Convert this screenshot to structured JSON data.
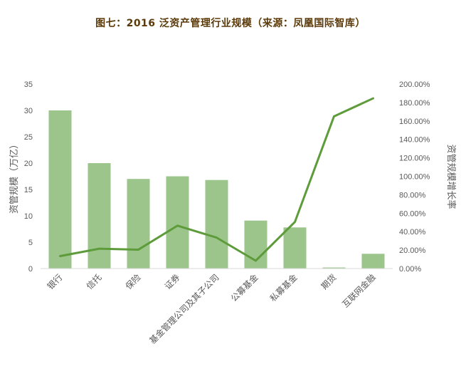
{
  "chart_data": {
    "type": "bar",
    "title": "图七：2016 泛资产管理行业规模（来源：凤凰国际智库）",
    "categories": [
      "银行",
      "信托",
      "保险",
      "证券",
      "基金管理公司及其子公司",
      "公募基金",
      "私募基金",
      "期货",
      "互联网金融"
    ],
    "series": [
      {
        "type": "bar",
        "axis": "left",
        "values": [
          30,
          20,
          17,
          17.5,
          16.8,
          9.1,
          7.8,
          0.2,
          2.8
        ]
      },
      {
        "type": "line",
        "axis": "right",
        "values": [
          13.5,
          21.5,
          20.5,
          46.5,
          33.5,
          8.5,
          50.5,
          165,
          184.5
        ]
      }
    ],
    "ylabel": "资管规模（万亿）",
    "y2label": "资管规模增长率",
    "ylim": [
      0,
      35
    ],
    "y2lim": [
      0,
      200
    ],
    "yticks": [
      "0",
      "5",
      "10",
      "15",
      "20",
      "25",
      "30",
      "35"
    ],
    "y2ticks": [
      "0.00%",
      "20.00%",
      "40.00%",
      "60.00%",
      "80.00%",
      "100.00%",
      "120.00%",
      "140.00%",
      "160.00%",
      "180.00%",
      "200.00%"
    ],
    "colors": {
      "bar": "#9bc58a",
      "line": "#5e9b3a",
      "text": "#595959",
      "title": "#5b3a0a"
    },
    "grid": false,
    "legend": "none"
  }
}
